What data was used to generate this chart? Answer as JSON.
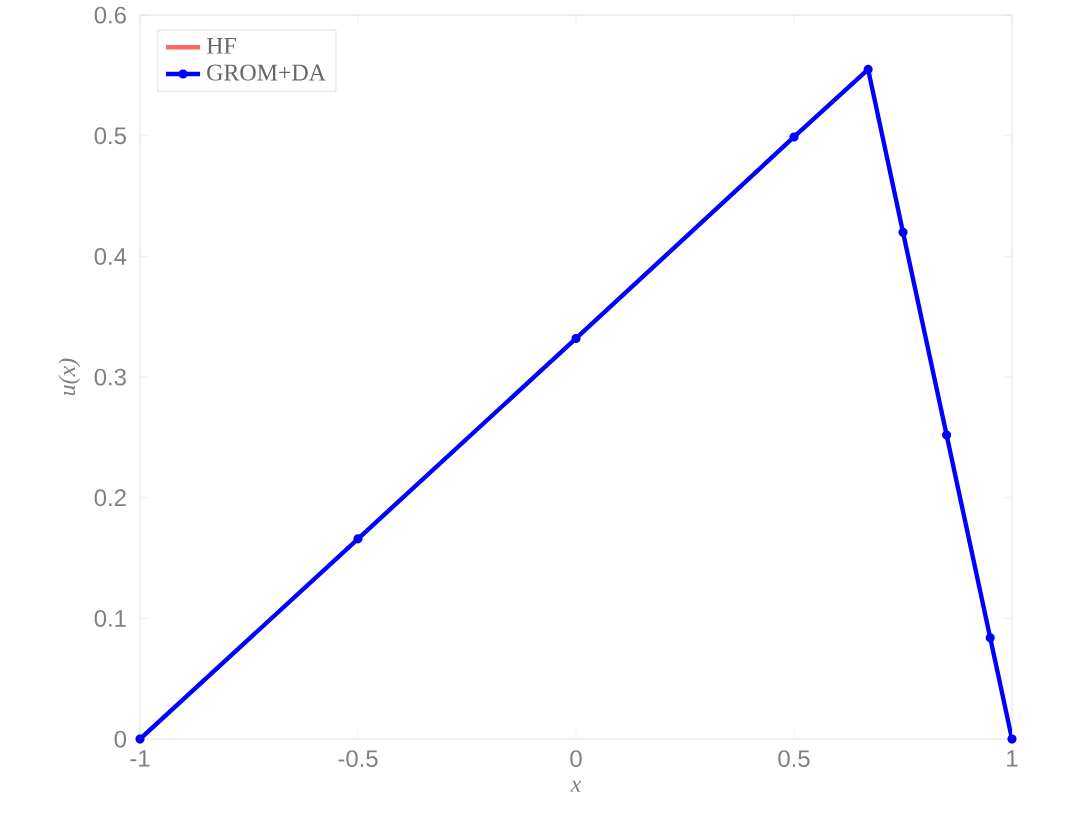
{
  "chart_data": {
    "type": "line",
    "xlabel": "x",
    "ylabel": "u(x)",
    "x": [
      -1,
      -0.5,
      0,
      0.5,
      0.67,
      0.75,
      0.85,
      0.95,
      1
    ],
    "series": [
      {
        "name": "HF",
        "color": "#ff6666",
        "values": [
          null,
          null,
          null,
          null,
          null,
          null,
          null,
          null,
          null
        ],
        "marker": "none"
      },
      {
        "name": "GROM+DA",
        "color": "#0000ff",
        "values": [
          0,
          0.166,
          0.332,
          0.499,
          0.555,
          0.42,
          0.252,
          0.084,
          0
        ],
        "marker": "circle"
      }
    ],
    "xlim": [
      -1,
      1
    ],
    "ylim": [
      0,
      0.6
    ],
    "xticks": [
      -1,
      -0.5,
      0,
      0.5,
      1
    ],
    "yticks": [
      0,
      0.1,
      0.2,
      0.3,
      0.4,
      0.5,
      0.6
    ],
    "legend": "top left",
    "grid": false,
    "line_style": "solid"
  }
}
